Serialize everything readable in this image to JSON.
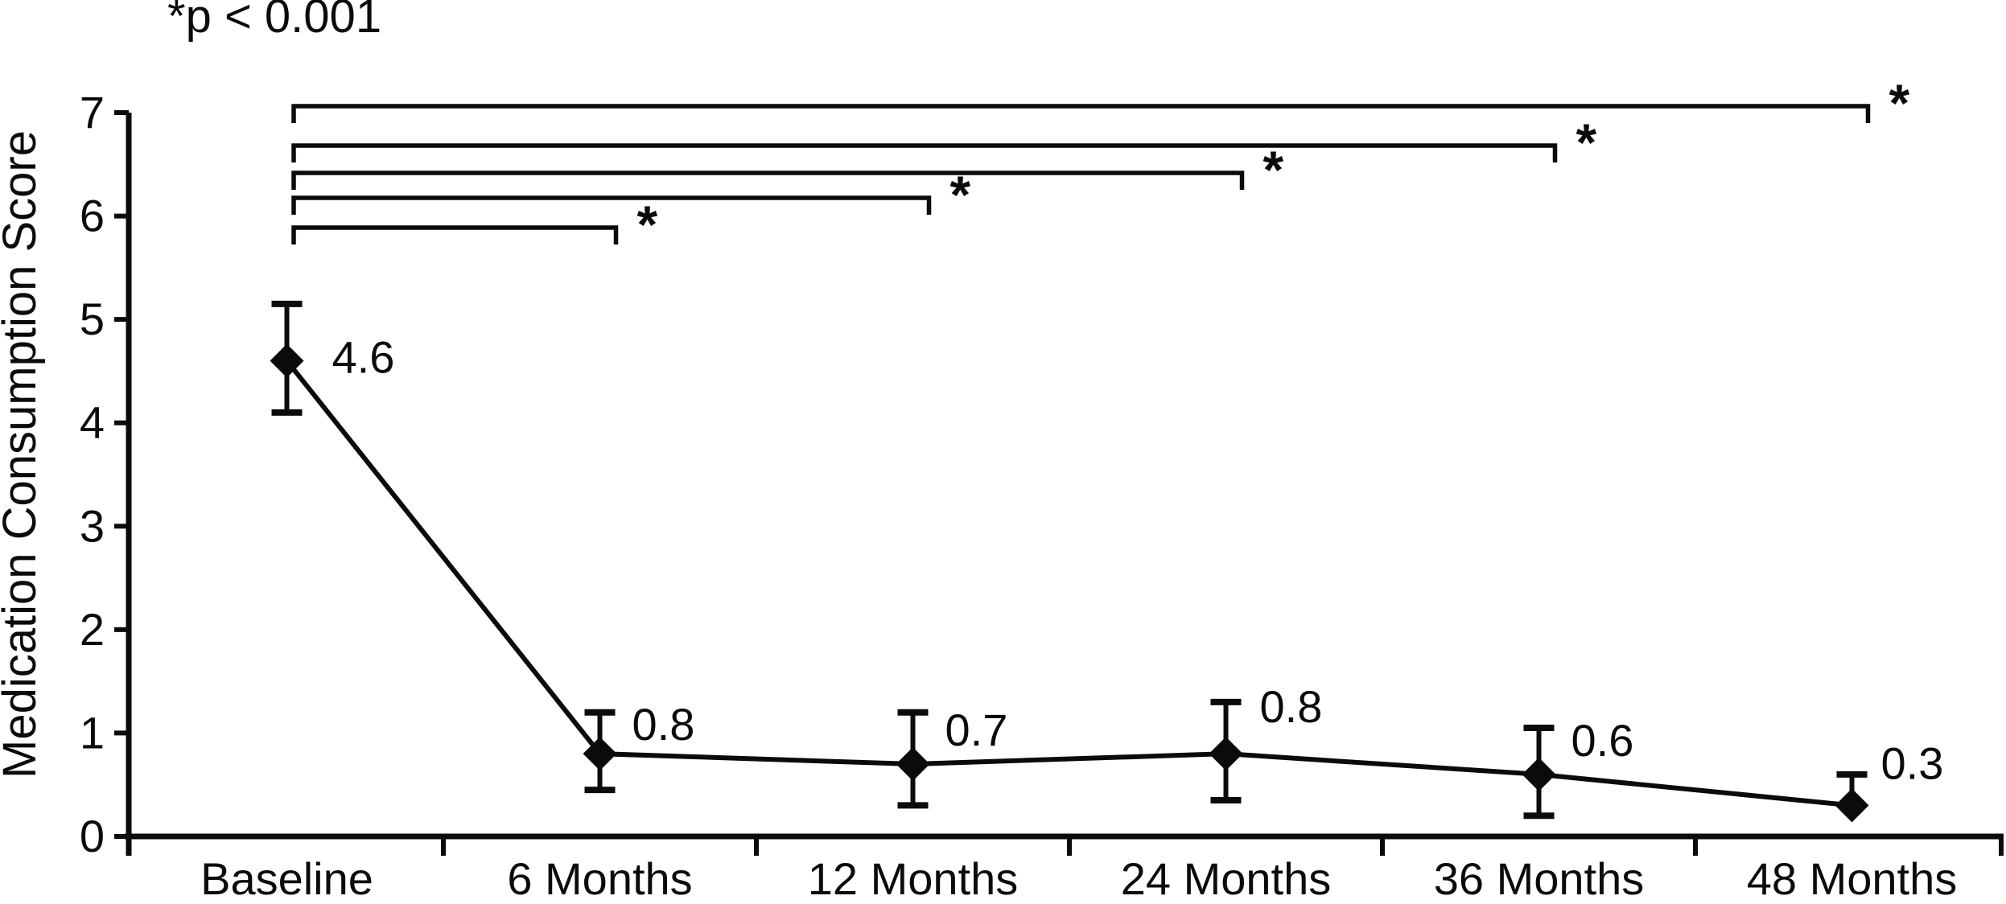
{
  "figure": {
    "background": "#ffffff",
    "ink": "#0b0b0b"
  },
  "chart_data": {
    "type": "line",
    "title": "",
    "significance_note": "*p < 0.001",
    "ylabel": "Medication Consumption Score",
    "xlabel": "",
    "categories": [
      "Baseline",
      "6 Months",
      "12 Months",
      "24 Months",
      "36 Months",
      "48 Months"
    ],
    "series": [
      {
        "name": "Medication Consumption Score",
        "values": [
          4.6,
          0.8,
          0.7,
          0.8,
          0.6,
          0.3
        ],
        "point_labels": [
          "4.6",
          "0.8",
          "0.7",
          "0.8",
          "0.6",
          "0.3"
        ],
        "error_upper": [
          0.55,
          0.4,
          0.5,
          0.5,
          0.45,
          0.3
        ],
        "error_lower": [
          0.5,
          0.35,
          0.4,
          0.45,
          0.4,
          0
        ],
        "marker": "diamond",
        "color": "#0b0b0b"
      }
    ],
    "ylim": [
      0,
      7
    ],
    "yticks": [
      0,
      1,
      2,
      3,
      4,
      5,
      6,
      7
    ],
    "grid": false,
    "legend": "none",
    "significance_brackets": [
      {
        "from": "Baseline",
        "to": "48 Months",
        "label": "*"
      },
      {
        "from": "Baseline",
        "to": "36 Months",
        "label": "*"
      },
      {
        "from": "Baseline",
        "to": "24 Months",
        "label": "*"
      },
      {
        "from": "Baseline",
        "to": "12 Months",
        "label": "*"
      },
      {
        "from": "Baseline",
        "to": "6 Months",
        "label": "*"
      }
    ]
  }
}
